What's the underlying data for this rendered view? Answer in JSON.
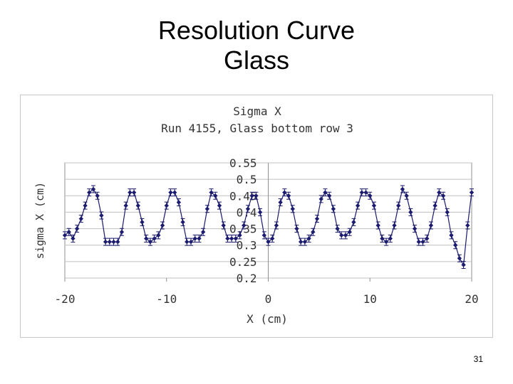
{
  "slide": {
    "title_line1": "Resolution Curve",
    "title_line2": "Glass",
    "page_number": "31"
  },
  "chart_data": {
    "type": "line",
    "title": "Sigma X",
    "subtitle": "Run 4155, Glass bottom row 3",
    "xlabel": "X (cm)",
    "ylabel": "sigma X (cm)",
    "xlim": [
      -20,
      20
    ],
    "ylim": [
      0.2,
      0.55
    ],
    "x_ticks": [
      "-20",
      "-10",
      "0",
      "10",
      "20"
    ],
    "y_ticks": [
      "0.55",
      "0.5",
      "0.45",
      "0.4",
      "0.35",
      "0.3",
      "0.25",
      "0.2"
    ],
    "grid": true,
    "error_bars": true,
    "series": [
      {
        "color": "#1a1a6e",
        "x": [
          -20.0,
          -19.6,
          -19.2,
          -18.8,
          -18.4,
          -18.0,
          -17.6,
          -17.2,
          -16.8,
          -16.4,
          -16.0,
          -15.6,
          -15.2,
          -14.8,
          -14.4,
          -14.0,
          -13.6,
          -13.2,
          -12.8,
          -12.4,
          -12.0,
          -11.6,
          -11.2,
          -10.8,
          -10.4,
          -10.0,
          -9.6,
          -9.2,
          -8.8,
          -8.4,
          -8.0,
          -7.6,
          -7.2,
          -6.8,
          -6.4,
          -6.0,
          -5.6,
          -5.2,
          -4.8,
          -4.4,
          -4.0,
          -3.6,
          -3.2,
          -2.8,
          -2.4,
          -2.0,
          -1.6,
          -1.2,
          -0.8,
          -0.4,
          0.0,
          0.4,
          0.8,
          1.2,
          1.6,
          2.0,
          2.4,
          2.8,
          3.2,
          3.6,
          4.0,
          4.4,
          4.8,
          5.2,
          5.6,
          6.0,
          6.4,
          6.8,
          7.2,
          7.6,
          8.0,
          8.4,
          8.8,
          9.2,
          9.6,
          10.0,
          10.4,
          10.8,
          11.2,
          11.6,
          12.0,
          12.4,
          12.8,
          13.2,
          13.6,
          14.0,
          14.4,
          14.8,
          15.2,
          15.6,
          16.0,
          16.4,
          16.8,
          17.2,
          17.6,
          18.0,
          18.4,
          18.8,
          19.2,
          19.6,
          20.0
        ],
        "y": [
          0.33,
          0.34,
          0.32,
          0.35,
          0.38,
          0.42,
          0.46,
          0.47,
          0.45,
          0.39,
          0.31,
          0.31,
          0.31,
          0.31,
          0.34,
          0.42,
          0.46,
          0.46,
          0.42,
          0.37,
          0.32,
          0.31,
          0.32,
          0.33,
          0.36,
          0.42,
          0.46,
          0.46,
          0.43,
          0.37,
          0.31,
          0.31,
          0.32,
          0.32,
          0.34,
          0.41,
          0.46,
          0.45,
          0.42,
          0.36,
          0.32,
          0.32,
          0.32,
          0.33,
          0.36,
          0.41,
          0.45,
          0.45,
          0.4,
          0.33,
          0.31,
          0.32,
          0.36,
          0.43,
          0.46,
          0.45,
          0.41,
          0.35,
          0.31,
          0.31,
          0.32,
          0.34,
          0.38,
          0.44,
          0.46,
          0.45,
          0.41,
          0.35,
          0.33,
          0.33,
          0.34,
          0.37,
          0.42,
          0.46,
          0.46,
          0.45,
          0.42,
          0.36,
          0.32,
          0.31,
          0.32,
          0.36,
          0.42,
          0.47,
          0.45,
          0.4,
          0.35,
          0.31,
          0.31,
          0.32,
          0.36,
          0.42,
          0.46,
          0.45,
          0.4,
          0.33,
          0.3,
          0.26,
          0.24,
          0.36,
          0.46
        ]
      }
    ]
  }
}
